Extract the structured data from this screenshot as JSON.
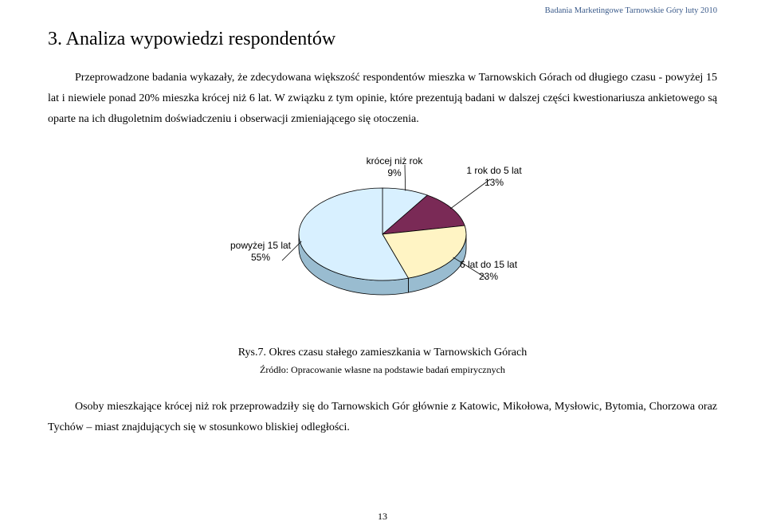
{
  "header_note": "Badania Marketingowe Tarnowskie Góry luty 2010",
  "title": "3. Analiza wypowiedzi respondentów",
  "para1": "Przeprowadzone badania wykazały, że zdecydowana większość respondentów mieszka w Tarnowskich Górach od długiego czasu - powyżej 15 lat i niewiele ponad 20% mieszka krócej niż 6 lat. W związku z tym opinie, które prezentują badani w dalszej części kwestionariusza ankietowego są oparte na ich długoletnim doświadczeniu i obserwacji zmieniającego się otoczenia.",
  "chart": {
    "type": "pie-3d",
    "slices": [
      {
        "label1": "krócej niż rok",
        "label2": "9%",
        "value": 9,
        "color": "#d8f0ff"
      },
      {
        "label1": "1 rok do 5 lat",
        "label2": "13%",
        "value": 13,
        "color": "#7a2a56"
      },
      {
        "label1": "6 lat do 15 lat",
        "label2": "23%",
        "value": 23,
        "color": "#fff4c4"
      },
      {
        "label1": "powyżej 15 lat",
        "label2": "55%",
        "value": 55,
        "color": "#d8f0ff"
      }
    ],
    "outline": "#000000",
    "leader_color": "#000000",
    "depth_shade": "#99bcd0"
  },
  "caption": "Rys.7. Okres czasu stałego zamieszkania w Tarnowskich Górach",
  "source": "Źródło: Opracowanie własne na podstawie badań empirycznych",
  "para2": "Osoby mieszkające krócej niż rok przeprowadziły się do Tarnowskich Gór głównie z Katowic, Mikołowa, Mysłowic, Bytomia, Chorzowa oraz Tychów – miast znajdujących się w stosunkowo bliskiej odległości.",
  "page_num": "13"
}
